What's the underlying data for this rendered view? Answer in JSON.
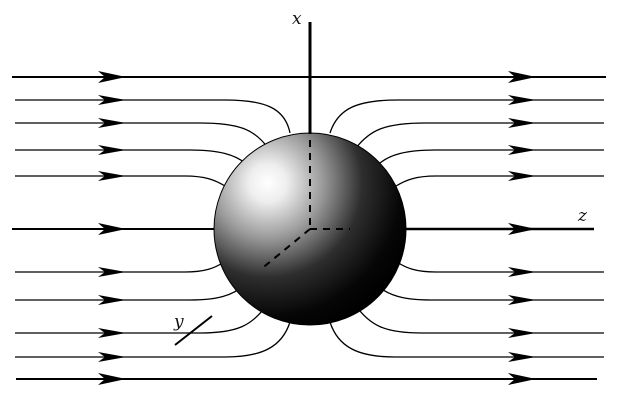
{
  "axes": {
    "x_label": "x",
    "y_label": "y",
    "z_label": "z"
  },
  "colors": {
    "ink": "#000000",
    "background": "#ffffff",
    "sphere_dark": "#050505",
    "sphere_highlight": "#ffffff"
  }
}
